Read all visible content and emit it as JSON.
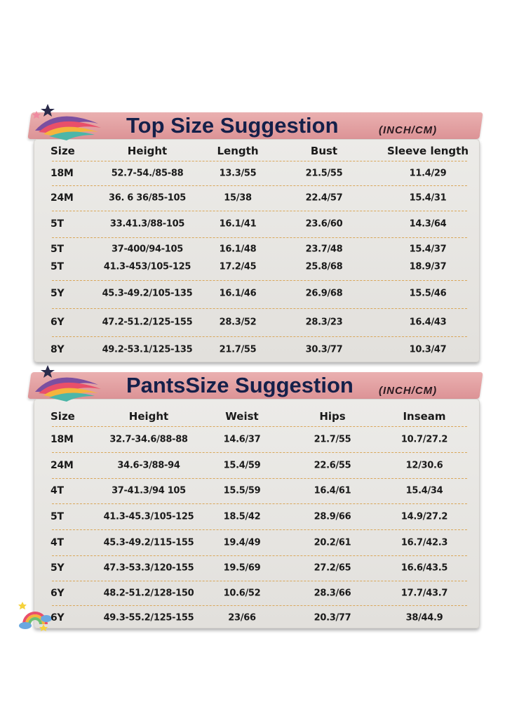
{
  "top": {
    "title": "Top Size Suggestion",
    "unit": "(INCH/CM)",
    "headers": [
      "Size",
      "Height",
      "Length",
      "Bust",
      "Sleeve length"
    ],
    "rows": [
      [
        "18M",
        "52.7-54./85-88",
        "13.3/55",
        "21.5/55",
        "11.4/29"
      ],
      [
        "24M",
        "36. 6 36/85-105",
        "15/38",
        "22.4/57",
        "15.4/31"
      ],
      [
        "5T",
        "33.41.3/88-105",
        "16.1/41",
        "23.6/60",
        "14.3/64"
      ],
      [
        "5T",
        "37-400/94-105",
        "16.1/48",
        "23.7/48",
        "15.4/37"
      ],
      [
        "5T",
        "41.3-453/105-125",
        "17.2/45",
        "25.8/68",
        "18.9/37"
      ],
      [
        "5Y",
        "45.3-49.2/105-135",
        "16.1/46",
        "26.9/68",
        "15.5/46"
      ],
      [
        "6Y",
        "47.2-51.2/125-155",
        "28.3/52",
        "28.3/23",
        "16.4/43"
      ],
      [
        "8Y",
        "49.2-53.1/125-135",
        "21.7/55",
        "30.3/77",
        "10.3/47"
      ]
    ]
  },
  "pants": {
    "title": "PantsSize Suggestion",
    "unit": "(INCH/CM)",
    "headers": [
      "Size",
      "Height",
      "Weist",
      "Hips",
      "Inseam"
    ],
    "rows": [
      [
        "18M",
        "32.7-34.6/88-88",
        "14.6/37",
        "21.7/55",
        "10.7/27.2"
      ],
      [
        "24M",
        "34.6-3/88-94",
        "15.4/59",
        "22.6/55",
        "12/30.6"
      ],
      [
        "4T",
        "37-41.3/94 105",
        "15.5/59",
        "16.4/61",
        "15.4/34"
      ],
      [
        "5T",
        "41.3-45.3/105-125",
        "18.5/42",
        "28.9/66",
        "14.9/27.2"
      ],
      [
        "4T",
        "45.3-49.2/115-155",
        "19.4/49",
        "20.2/61",
        "16.7/42.3"
      ],
      [
        "5Y",
        "47.3-53.3/120-155",
        "19.5/69",
        "27.2/65",
        "16.6/43.5"
      ],
      [
        "6Y",
        "48.2-51.2/128-150",
        "10.6/52",
        "28.3/66",
        "17.7/43.7"
      ],
      [
        "6Y",
        "49.3-55.2/125-155",
        "23/66",
        "20.3/77",
        "38/44.9"
      ]
    ]
  },
  "colors": {
    "banner": "#e3a0a2",
    "title": "#14204a",
    "divider": "#d9a75a",
    "panel": "#e8e6e3"
  },
  "icons": [
    "rainbow-feather-icon",
    "rainbow-cloud-icon"
  ]
}
